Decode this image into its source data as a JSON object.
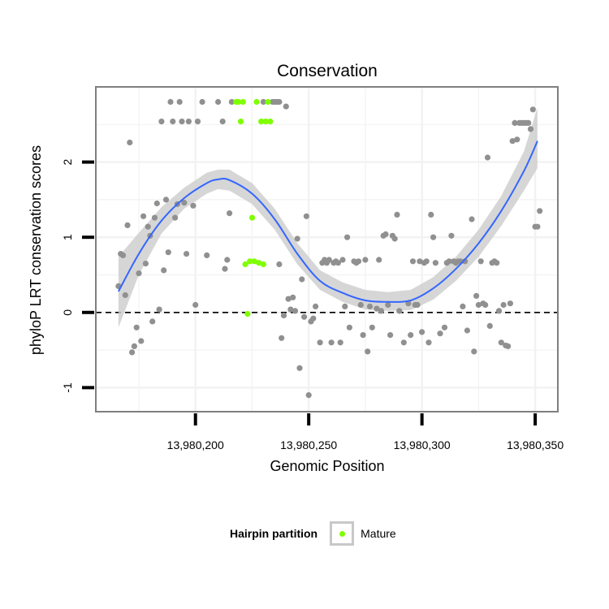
{
  "chart_data": {
    "type": "scatter",
    "title": "Conservation",
    "xlabel": "Genomic Position",
    "ylabel": "phyloP LRT conservation scores",
    "xlim": [
      13980156,
      13980360
    ],
    "ylim": [
      -1.32,
      3.0
    ],
    "x_ticks": [
      13980200,
      13980250,
      13980300,
      13980350
    ],
    "x_tick_labels": [
      "13,980,200",
      "13,980,250",
      "13,980,300",
      "13,980,350"
    ],
    "y_ticks": [
      -1,
      0,
      1,
      2
    ],
    "y_tick_labels": [
      "-1",
      "0",
      "1",
      "2"
    ],
    "reference_line": {
      "y": 0,
      "style": "dashed"
    },
    "colors": {
      "other": "#909090",
      "mature": "#7fff00",
      "smooth": "#3366ff",
      "band": "#cccccc",
      "panel_border": "#7f7f7f"
    },
    "legend": {
      "title": "Hairpin partition",
      "entries": [
        {
          "label": "Mature",
          "color": "#7fff00"
        }
      ],
      "position": "bottom"
    },
    "series": [
      {
        "name": "Other",
        "color": "#909090",
        "points": [
          [
            13980166,
            0.35
          ],
          [
            13980167,
            0.78
          ],
          [
            13980168,
            0.76
          ],
          [
            13980169,
            0.23
          ],
          [
            13980170,
            1.16
          ],
          [
            13980171,
            2.26
          ],
          [
            13980172,
            -0.53
          ],
          [
            13980173,
            -0.45
          ],
          [
            13980174,
            -0.2
          ],
          [
            13980175,
            0.52
          ],
          [
            13980176,
            -0.38
          ],
          [
            13980177,
            1.28
          ],
          [
            13980178,
            0.65
          ],
          [
            13980179,
            1.14
          ],
          [
            13980180,
            1.02
          ],
          [
            13980181,
            -0.12
          ],
          [
            13980182,
            1.26
          ],
          [
            13980183,
            1.45
          ],
          [
            13980184,
            0.04
          ],
          [
            13980185,
            2.54
          ],
          [
            13980186,
            0.56
          ],
          [
            13980187,
            1.5
          ],
          [
            13980188,
            0.8
          ],
          [
            13980189,
            2.8
          ],
          [
            13980190,
            2.54
          ],
          [
            13980191,
            1.26
          ],
          [
            13980192,
            1.44
          ],
          [
            13980193,
            2.8
          ],
          [
            13980194,
            2.54
          ],
          [
            13980195,
            1.46
          ],
          [
            13980196,
            0.78
          ],
          [
            13980197,
            2.54
          ],
          [
            13980199,
            1.42
          ],
          [
            13980200,
            0.1
          ],
          [
            13980201,
            2.54
          ],
          [
            13980203,
            2.8
          ],
          [
            13980205,
            0.76
          ],
          [
            13980210,
            2.8
          ],
          [
            13980212,
            2.54
          ],
          [
            13980213,
            0.58
          ],
          [
            13980214,
            0.7
          ],
          [
            13980215,
            1.32
          ],
          [
            13980216,
            2.8
          ],
          [
            13980230,
            2.8
          ],
          [
            13980234,
            2.8
          ],
          [
            13980235,
            2.8
          ],
          [
            13980236,
            2.8
          ],
          [
            13980237,
            2.8
          ],
          [
            13980237,
            0.64
          ],
          [
            13980238,
            -0.34
          ],
          [
            13980239,
            -0.04
          ],
          [
            13980240,
            2.74
          ],
          [
            13980241,
            0.18
          ],
          [
            13980242,
            0.04
          ],
          [
            13980243,
            0.2
          ],
          [
            13980244,
            0.02
          ],
          [
            13980245,
            0.98
          ],
          [
            13980246,
            -0.74
          ],
          [
            13980247,
            0.44
          ],
          [
            13980248,
            -0.06
          ],
          [
            13980249,
            1.28
          ],
          [
            13980250,
            -1.1
          ],
          [
            13980251,
            -0.12
          ],
          [
            13980252,
            -0.08
          ],
          [
            13980253,
            0.08
          ],
          [
            13980255,
            -0.4
          ],
          [
            13980256,
            0.66
          ],
          [
            13980257,
            0.7
          ],
          [
            13980258,
            0.66
          ],
          [
            13980259,
            0.7
          ],
          [
            13980260,
            -0.4
          ],
          [
            13980261,
            0.66
          ],
          [
            13980262,
            0.68
          ],
          [
            13980263,
            0.66
          ],
          [
            13980264,
            -0.4
          ],
          [
            13980265,
            0.7
          ],
          [
            13980266,
            0.08
          ],
          [
            13980267,
            1.0
          ],
          [
            13980268,
            -0.2
          ],
          [
            13980270,
            0.68
          ],
          [
            13980271,
            0.66
          ],
          [
            13980272,
            0.68
          ],
          [
            13980273,
            0.1
          ],
          [
            13980274,
            -0.3
          ],
          [
            13980275,
            0.7
          ],
          [
            13980276,
            -0.52
          ],
          [
            13980277,
            0.08
          ],
          [
            13980278,
            -0.2
          ],
          [
            13980280,
            0.05
          ],
          [
            13980281,
            0.7
          ],
          [
            13980282,
            0.02
          ],
          [
            13980283,
            1.02
          ],
          [
            13980284,
            1.04
          ],
          [
            13980285,
            0.1
          ],
          [
            13980286,
            -0.3
          ],
          [
            13980287,
            1.02
          ],
          [
            13980288,
            0.98
          ],
          [
            13980289,
            1.3
          ],
          [
            13980290,
            0.02
          ],
          [
            13980292,
            -0.4
          ],
          [
            13980294,
            0.12
          ],
          [
            13980295,
            -0.3
          ],
          [
            13980296,
            0.68
          ],
          [
            13980297,
            0.1
          ],
          [
            13980298,
            0.1
          ],
          [
            13980299,
            0.68
          ],
          [
            13980300,
            -0.26
          ],
          [
            13980301,
            0.66
          ],
          [
            13980302,
            0.68
          ],
          [
            13980303,
            -0.4
          ],
          [
            13980304,
            1.3
          ],
          [
            13980305,
            1.0
          ],
          [
            13980306,
            0.66
          ],
          [
            13980308,
            -0.28
          ],
          [
            13980310,
            -0.2
          ],
          [
            13980311,
            0.66
          ],
          [
            13980312,
            0.68
          ],
          [
            13980313,
            1.02
          ],
          [
            13980314,
            0.68
          ],
          [
            13980315,
            0.66
          ],
          [
            13980316,
            0.68
          ],
          [
            13980317,
            0.68
          ],
          [
            13980318,
            0.08
          ],
          [
            13980319,
            0.68
          ],
          [
            13980320,
            -0.24
          ],
          [
            13980322,
            1.24
          ],
          [
            13980323,
            -0.52
          ],
          [
            13980324,
            0.22
          ],
          [
            13980325,
            0.1
          ],
          [
            13980326,
            0.68
          ],
          [
            13980327,
            0.12
          ],
          [
            13980328,
            0.1
          ],
          [
            13980329,
            2.06
          ],
          [
            13980330,
            -0.18
          ],
          [
            13980331,
            0.66
          ],
          [
            13980332,
            0.68
          ],
          [
            13980333,
            0.66
          ],
          [
            13980334,
            0.02
          ],
          [
            13980335,
            -0.4
          ],
          [
            13980336,
            0.1
          ],
          [
            13980337,
            -0.44
          ],
          [
            13980338,
            -0.45
          ],
          [
            13980339,
            0.12
          ],
          [
            13980340,
            2.28
          ],
          [
            13980341,
            2.52
          ],
          [
            13980342,
            2.3
          ],
          [
            13980343,
            2.52
          ],
          [
            13980344,
            2.52
          ],
          [
            13980345,
            2.52
          ],
          [
            13980346,
            2.52
          ],
          [
            13980347,
            2.52
          ],
          [
            13980348,
            2.44
          ],
          [
            13980349,
            2.7
          ],
          [
            13980350,
            1.14
          ],
          [
            13980351,
            1.14
          ],
          [
            13980352,
            1.35
          ]
        ]
      },
      {
        "name": "Mature",
        "color": "#7fff00",
        "points": [
          [
            13980218,
            2.8
          ],
          [
            13980219,
            2.8
          ],
          [
            13980220,
            2.54
          ],
          [
            13980221,
            2.8
          ],
          [
            13980222,
            0.64
          ],
          [
            13980223,
            -0.02
          ],
          [
            13980224,
            0.68
          ],
          [
            13980225,
            1.26
          ],
          [
            13980226,
            0.68
          ],
          [
            13980227,
            2.8
          ],
          [
            13980228,
            0.66
          ],
          [
            13980229,
            2.54
          ],
          [
            13980230,
            0.64
          ],
          [
            13980231,
            2.54
          ],
          [
            13980232,
            2.8
          ],
          [
            13980233,
            2.54
          ]
        ]
      }
    ],
    "smooth": {
      "x": [
        13980166,
        13980175,
        13980185,
        13980195,
        13980205,
        13980210,
        13980215,
        13980225,
        13980235,
        13980245,
        13980255,
        13980265,
        13980275,
        13980285,
        13980295,
        13980305,
        13980315,
        13980325,
        13980335,
        13980345,
        13980351
      ],
      "y": [
        0.28,
        0.78,
        1.22,
        1.52,
        1.72,
        1.77,
        1.76,
        1.58,
        1.24,
        0.78,
        0.42,
        0.26,
        0.16,
        0.14,
        0.16,
        0.32,
        0.58,
        0.92,
        1.35,
        1.88,
        2.28
      ],
      "lower": [
        -0.2,
        0.5,
        1.05,
        1.38,
        1.58,
        1.64,
        1.62,
        1.44,
        1.1,
        0.64,
        0.3,
        0.14,
        0.04,
        0.02,
        0.03,
        0.17,
        0.42,
        0.74,
        1.15,
        1.62,
        1.92
      ],
      "upper": [
        0.74,
        1.06,
        1.4,
        1.66,
        1.86,
        1.9,
        1.9,
        1.72,
        1.38,
        0.92,
        0.56,
        0.4,
        0.3,
        0.27,
        0.3,
        0.47,
        0.74,
        1.1,
        1.55,
        2.14,
        2.72
      ]
    }
  }
}
